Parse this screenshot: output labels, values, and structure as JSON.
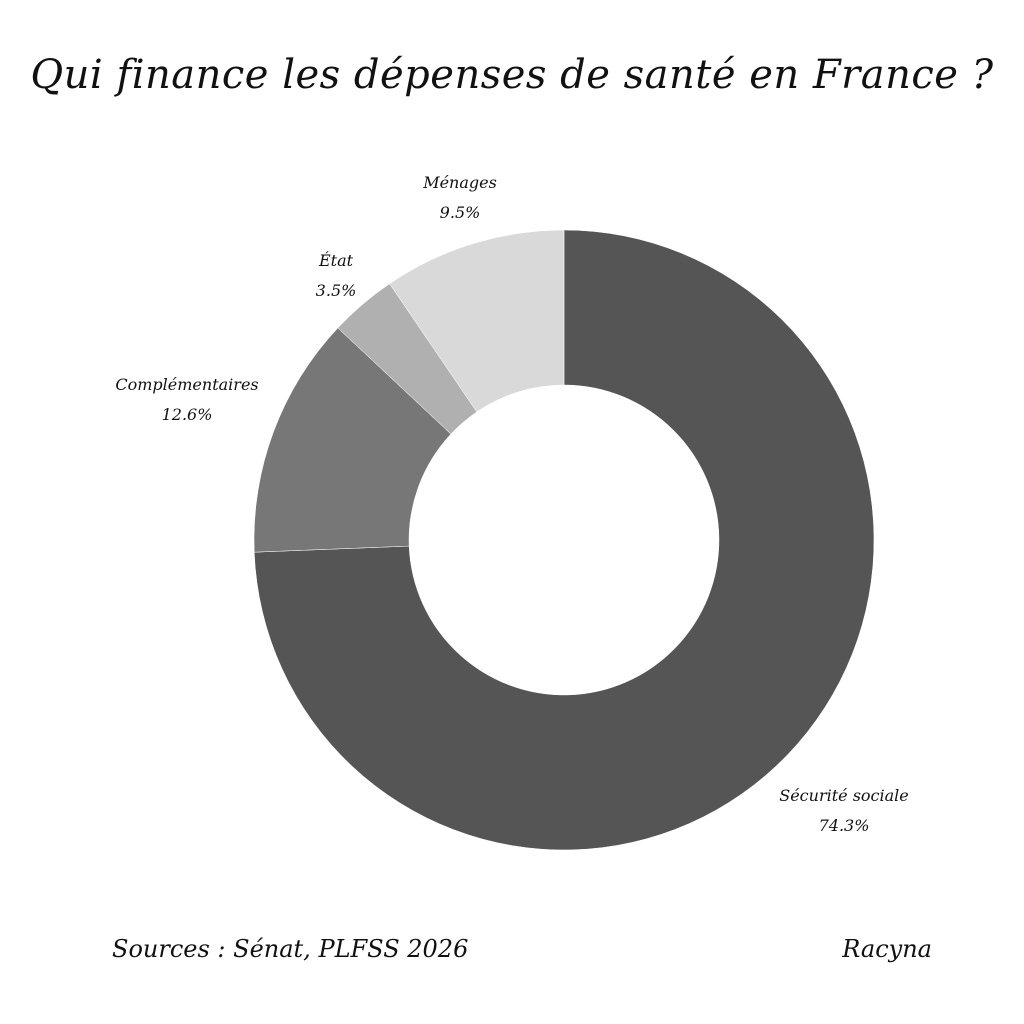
{
  "title": "Qui finance les dépenses de santé en France ?",
  "footer": {
    "sources": "Sources : Sénat, PLFSS 2026",
    "author": "Racyna"
  },
  "chart_data": {
    "type": "pie",
    "subtype": "donut",
    "title": "Qui finance les dépenses de santé en France ?",
    "start_angle": "12 o'clock",
    "direction": "clockwise",
    "categories": [
      "Sécurité sociale",
      "Complémentaires",
      "État",
      "Ménages"
    ],
    "values": [
      74.3,
      12.6,
      3.5,
      9.5
    ],
    "unit": "%",
    "colors": [
      "#555555",
      "#777777",
      "#b0b0b0",
      "#d9d9d9"
    ],
    "labels": [
      {
        "name": "Sécurité sociale",
        "value": "74.3%"
      },
      {
        "name": "Complémentaires",
        "value": "12.6%"
      },
      {
        "name": "État",
        "value": "3.5%"
      },
      {
        "name": "Ménages",
        "value": "9.5%"
      }
    ],
    "legend": "none (outer labels)",
    "source": "Sources : Sénat, PLFSS 2026"
  }
}
